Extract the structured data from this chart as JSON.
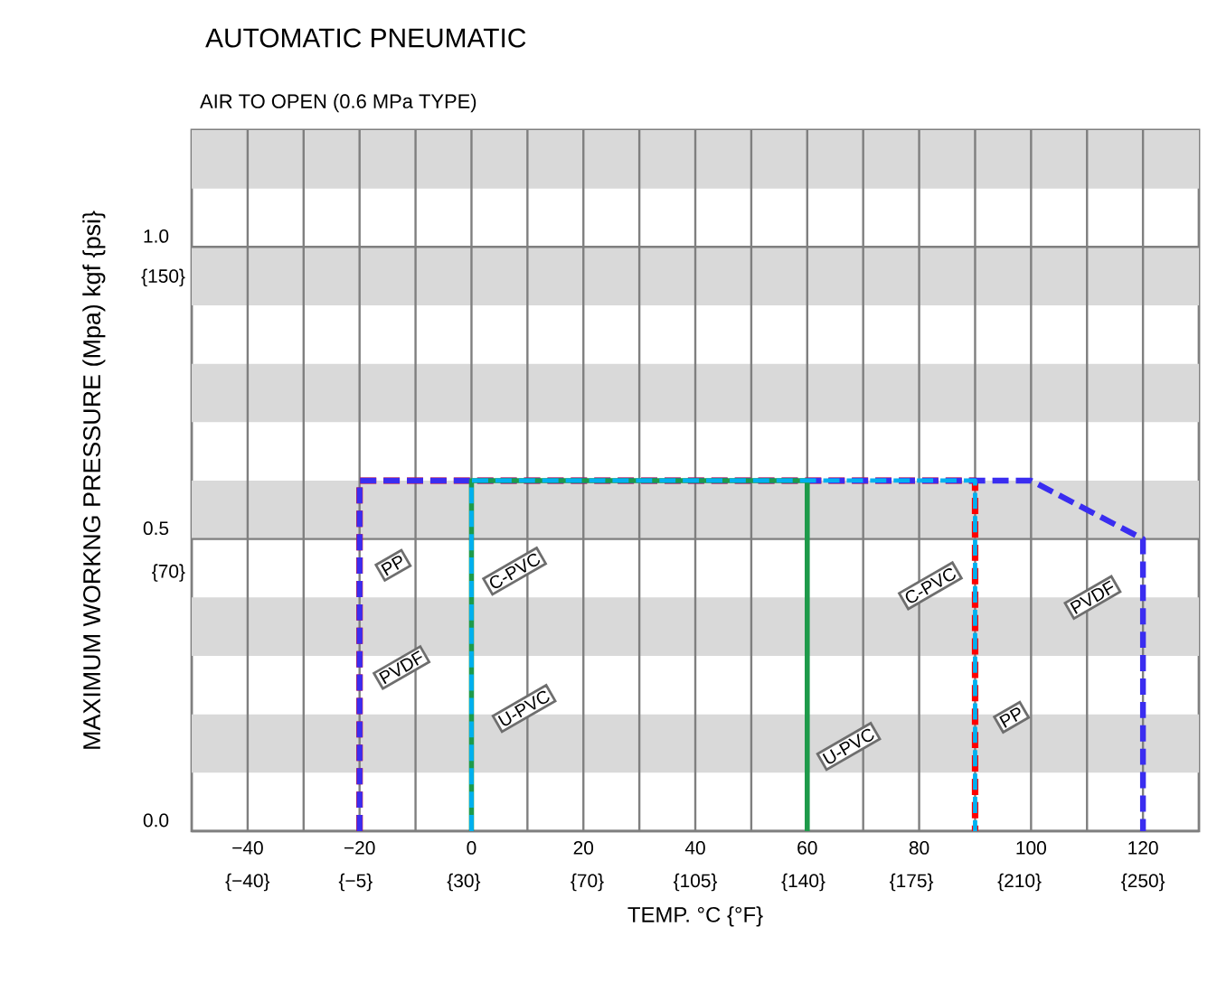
{
  "chart_data": {
    "type": "line",
    "title": "AUTOMATIC  PNEUMATIC",
    "subtitle": "AIR TO OPEN (0.6 MPa TYPE)",
    "xlabel": "TEMP. °C {°F}",
    "ylabel": "MAXIMUM WORKNG PRESSURE (Mpa) kgf {psi}",
    "xlim": [
      -50,
      130
    ],
    "xticks": [
      {
        "value": -40,
        "label": "−40"
      },
      {
        "value": -30,
        "label": null
      },
      {
        "value": -20,
        "label": "−20"
      },
      {
        "value": -10,
        "label": null
      },
      {
        "value": 0,
        "label": "0"
      },
      {
        "value": 10,
        "label": null
      },
      {
        "value": 20,
        "label": "20"
      },
      {
        "value": 30,
        "label": null
      },
      {
        "value": 40,
        "label": "40"
      },
      {
        "value": 50,
        "label": null
      },
      {
        "value": 60,
        "label": "60"
      },
      {
        "value": 70,
        "label": null
      },
      {
        "value": 80,
        "label": "80"
      },
      {
        "value": 90,
        "label": null
      },
      {
        "value": 100,
        "label": "100"
      },
      {
        "value": 110,
        "label": null
      },
      {
        "value": 120,
        "label": "120"
      }
    ],
    "x2lim": [
      -58.1,
      268.1
    ],
    "x2ticks": [
      {
        "value": -40,
        "label": "{−40}"
      },
      {
        "value": -5,
        "label": "{−5}"
      },
      {
        "value": 30,
        "label": "{30}"
      },
      {
        "value": 70,
        "label": "{70}"
      },
      {
        "value": 105,
        "label": "{105}"
      },
      {
        "value": 140,
        "label": "{140}"
      },
      {
        "value": 175,
        "label": "{175}"
      },
      {
        "value": 210,
        "label": "{210}"
      },
      {
        "value": 250,
        "label": "{250}"
      }
    ],
    "ylim": [
      0,
      1.2
    ],
    "yticks": [
      {
        "value": 0,
        "label": "0.0"
      },
      0.5,
      {
        "value": 1.0,
        "label": "1.0"
      }
    ],
    "y2lim": [
      0,
      190
    ],
    "y2ticks": [
      {
        "value": 70,
        "label": "{70}"
      },
      {
        "value": 150,
        "label": "{150}"
      }
    ],
    "grid": true,
    "bands": [
      {
        "axis": "y",
        "from": 0.1,
        "to": 0.2,
        "color": "#d9d9d9"
      },
      {
        "axis": "y",
        "from": 0.3,
        "to": 0.4,
        "color": "#d9d9d9"
      },
      {
        "axis": "y",
        "from": 0.5,
        "to": 0.6,
        "color": "#d9d9d9"
      },
      {
        "axis": "y",
        "from": 0.7,
        "to": 0.8,
        "color": "#d9d9d9"
      },
      {
        "axis": "y",
        "from": 0.9,
        "to": 1.0,
        "color": "#d9d9d9"
      },
      {
        "axis": "y",
        "from": 1.1,
        "to": 1.2,
        "color": "#d9d9d9"
      }
    ],
    "series": [
      {
        "color": "#ff0000",
        "line_style": "dashed",
        "x": [
          -20,
          -20,
          90,
          90
        ],
        "values": [
          0,
          0.6,
          0.6,
          0
        ]
      },
      {
        "color": "#3a2df0",
        "line_style": "dashed",
        "x": [
          -20,
          -20,
          100,
          120,
          120
        ],
        "values": [
          0,
          0.6,
          0.6,
          0.5,
          0
        ]
      },
      {
        "color": "#1e9a4a",
        "line_style": "solid",
        "x": [
          0,
          0,
          60,
          60
        ],
        "values": [
          0,
          0.6,
          0.6,
          0
        ]
      },
      {
        "color": "#00b0f0",
        "line_style": "dashed",
        "x": [
          0,
          0,
          90,
          90
        ],
        "values": [
          0,
          0.6,
          0.6,
          0
        ]
      }
    ],
    "annotations": [
      {
        "text": "PP",
        "x": -14,
        "y": 0.455
      },
      {
        "text": "PVDF",
        "x": -12.5,
        "y": 0.28
      },
      {
        "text": "C-PVC",
        "x": 7.7,
        "y": 0.445
      },
      {
        "text": "U-PVC",
        "x": 9.4,
        "y": 0.21
      },
      {
        "text": "U-PVC",
        "x": 67.4,
        "y": 0.145
      },
      {
        "text": "C-PVC",
        "x": 82,
        "y": 0.42
      },
      {
        "text": "PP",
        "x": 96.5,
        "y": 0.195
      },
      {
        "text": "PVDF",
        "x": 111,
        "y": 0.4
      }
    ]
  }
}
